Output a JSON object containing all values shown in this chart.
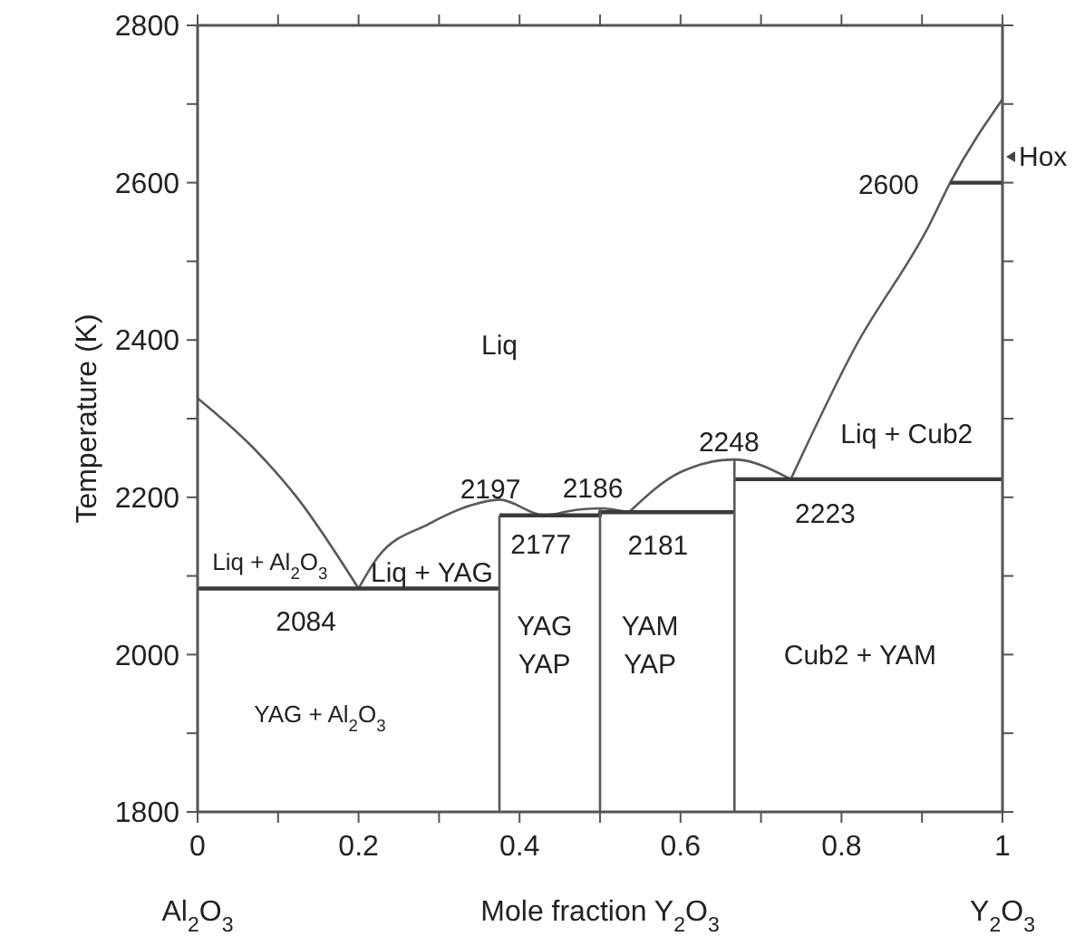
{
  "chart_data": {
    "type": "line",
    "xlabel": "Mole fraction Y$_{2}$O$_{3}$",
    "ylabel": "Temperature (K)",
    "xlim": [
      0,
      1
    ],
    "ylim": [
      1800,
      2800
    ],
    "xticks": [
      0,
      {
        "value": 0.1,
        "label": null
      },
      0.2,
      {
        "value": 0.3,
        "label": null
      },
      0.4,
      {
        "value": 0.5,
        "label": null
      },
      0.6,
      {
        "value": 0.7,
        "label": null
      },
      0.8,
      {
        "value": 0.9,
        "label": null
      },
      1.0
    ],
    "yticks": [
      1800,
      {
        "value": 1900,
        "label": null
      },
      2000,
      {
        "value": 2100,
        "label": null
      },
      2200,
      {
        "value": 2300,
        "label": null
      },
      2400,
      {
        "value": 2500,
        "label": null
      },
      2600,
      {
        "value": 2700,
        "label": null
      },
      2800
    ],
    "grid": false,
    "marker": "none",
    "line_style": "solid",
    "series": [
      {
        "color": "#5a5a5a",
        "x": [
          0,
          0.07,
          0.124,
          0.2
        ],
        "values": [
          2326,
          2262,
          2199,
          2084
        ]
      },
      {
        "color": "#5a5a5a",
        "x": [
          0.2,
          0.224,
          0.287,
          0.34,
          0.375,
          0.431,
          0.47,
          0.5,
          0.536
        ],
        "values": [
          2084,
          2124,
          2166,
          2190,
          2197,
          2177,
          2184,
          2186,
          2181
        ]
      },
      {
        "color": "#5a5a5a",
        "x": [
          0.536,
          0.6,
          0.667,
          0.737
        ],
        "values": [
          2181,
          2232,
          2248,
          2223
        ]
      },
      {
        "color": "#5a5a5a",
        "x": [
          0.737,
          0.816,
          0.909,
          0.935,
          1.0
        ],
        "values": [
          2223,
          2389,
          2546,
          2600,
          2706
        ]
      },
      {
        "color": "#3a3a3a",
        "x": [
          0,
          0.375
        ],
        "values": [
          2084,
          2084
        ]
      },
      {
        "color": "#3a3a3a",
        "x": [
          0.375,
          0.5,
          0.5,
          0.667
        ],
        "values": [
          2177,
          2177,
          2181,
          2181
        ]
      },
      {
        "color": "#3a3a3a",
        "x": [
          0.667,
          1.0
        ],
        "values": [
          2223,
          2223
        ]
      },
      {
        "color": "#3a3a3a",
        "x": [
          0.935,
          1.0
        ],
        "values": [
          2600,
          2600
        ]
      },
      {
        "color": "#5a5a5a",
        "x": [
          0.375,
          0.375
        ],
        "values": [
          1800,
          2177
        ]
      },
      {
        "color": "#5a5a5a",
        "x": [
          0.5,
          0.5
        ],
        "values": [
          1800,
          2186
        ]
      },
      {
        "color": "#5a5a5a",
        "x": [
          0.667,
          0.667
        ],
        "values": [
          1800,
          2248
        ]
      }
    ],
    "annotations": [
      "Liq",
      "Liq + Al$_{2}$O$_{3}$",
      "Liq + YAG",
      {
        "text": "2084",
        "x": 0.2,
        "y": 2084
      },
      {
        "text": "2197",
        "x": 0.375,
        "y": 2197
      },
      {
        "text": "2186",
        "x": 0.5,
        "y": 2186
      },
      {
        "text": "2177",
        "x": 0.431,
        "y": 2177
      },
      {
        "text": "2181",
        "x": 0.536,
        "y": 2181
      },
      "YAG",
      "YAP",
      "YAM",
      "YAP",
      "YAG + Al$_{2}$O$_{3}$",
      "Cub2 + YAM",
      "Liq + Cub2",
      {
        "text": "2248",
        "x": 0.667,
        "y": 2248
      },
      {
        "text": "2223",
        "x": 0.737,
        "y": 2223
      },
      {
        "text": "2600",
        "x": 0.935,
        "y": 2600
      },
      "Hox",
      "Al$_{2}$O$_{3}$",
      "Y$_{2}$O$_{3}$"
    ]
  }
}
